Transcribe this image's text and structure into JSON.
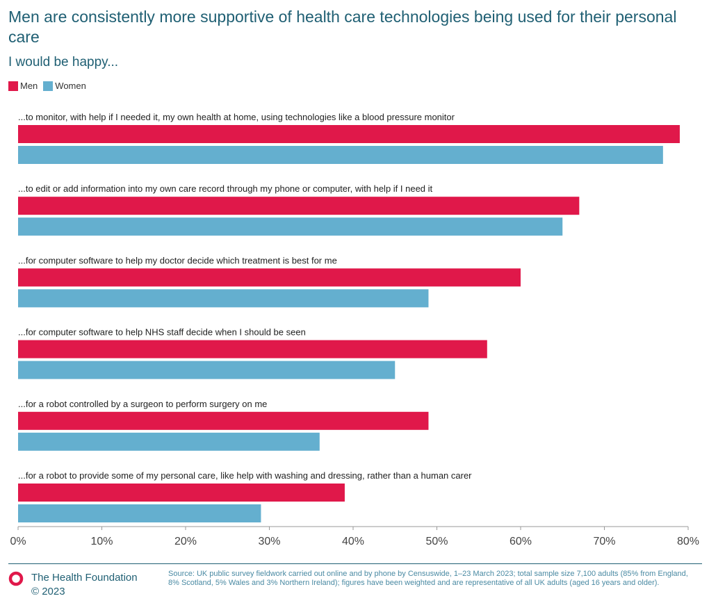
{
  "header": {
    "title": "Men are consistently more supportive of health care technologies being used for their personal care",
    "subtitle": "I would be happy..."
  },
  "footer": {
    "brand": "The Health Foundation",
    "copyright": "© 2023",
    "source": "Source: UK public survey fieldwork carried out online and by phone by Censuswide, 1–23 March 2023; total sample size 7,100 adults (85% from England, 8% Scotland, 5% Wales and 3% Northern Ireland); figures have been weighted and are representative of all UK adults (aged 16 years and older)."
  },
  "colors": {
    "men": "#e0184a",
    "women": "#64afcf",
    "brand": "#1f5f73"
  },
  "chart_data": {
    "type": "bar",
    "orientation": "horizontal",
    "categories": [
      "...to monitor, with help if I needed it, my own health at home, using technologies like a blood pressure monitor",
      "...to edit or add information into my own care record through my phone or computer, with help if I need it",
      "...for computer software to help my doctor decide which treatment is best for me",
      "...for computer software to help NHS staff decide when I should be seen",
      "...for a robot controlled by a surgeon to perform surgery on me",
      "...for a robot to provide some of my personal care, like help with washing and dressing, rather than a human carer"
    ],
    "series": [
      {
        "name": "Men",
        "values": [
          79,
          67,
          60,
          56,
          49,
          39
        ]
      },
      {
        "name": "Women",
        "values": [
          77,
          65,
          49,
          45,
          36,
          29
        ]
      }
    ],
    "xlim": [
      0,
      80
    ],
    "xticks": [
      "0%",
      "10%",
      "20%",
      "30%",
      "40%",
      "50%",
      "60%",
      "70%",
      "80%"
    ],
    "legend": "top-left",
    "grid": false
  }
}
